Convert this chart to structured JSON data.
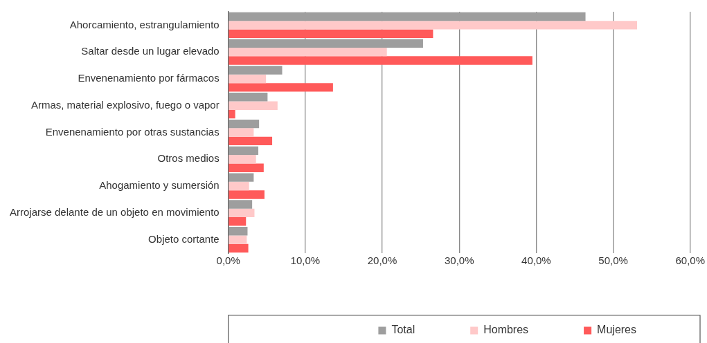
{
  "chart_data": {
    "type": "bar",
    "orientation": "horizontal",
    "categories": [
      "Ahorcamiento, estrangulamiento",
      "Saltar desde un lugar elevado",
      "Envenenamiento por fármacos",
      "Armas, material explosivo, fuego o vapor",
      "Envenenamiento por otras sustancias",
      "Otros medios",
      "Ahogamiento y sumersión",
      "Arrojarse delante de un objeto en movimiento",
      "Objeto cortante"
    ],
    "series": [
      {
        "name": "Total",
        "color": "#9e9e9e",
        "values": [
          46.4,
          25.3,
          7.0,
          5.1,
          4.0,
          3.9,
          3.3,
          3.1,
          2.5
        ]
      },
      {
        "name": "Hombres",
        "color": "#ffc9c9",
        "values": [
          53.1,
          20.6,
          4.9,
          6.4,
          3.3,
          3.6,
          2.7,
          3.4,
          2.4
        ]
      },
      {
        "name": "Mujeres",
        "color": "#ff5a5a",
        "values": [
          26.6,
          39.5,
          13.6,
          0.9,
          5.7,
          4.6,
          4.7,
          2.3,
          2.6
        ]
      }
    ],
    "xlim": [
      0,
      60
    ],
    "xticks": [
      {
        "value": 0,
        "label": "0,0%"
      },
      {
        "value": 10,
        "label": "10,0%"
      },
      {
        "value": 20,
        "label": "20,0%"
      },
      {
        "value": 30,
        "label": "30,0%"
      },
      {
        "value": 40,
        "label": "40,0%"
      },
      {
        "value": 50,
        "label": "50,0%"
      },
      {
        "value": 60,
        "label": "60,0%"
      }
    ],
    "grid": "x",
    "legend": "bottom"
  }
}
